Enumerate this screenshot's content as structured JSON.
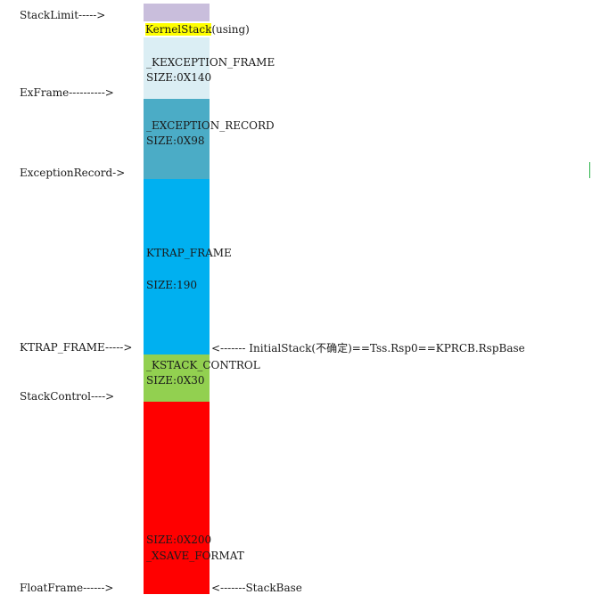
{
  "colors": {
    "top_region": "#c9bedc",
    "kernel_stack_highlight": "#ffff00",
    "kexception_frame": "#dbeef4",
    "exception_record": "#4bacc6",
    "ktrap_frame": "#00b0f0",
    "kstack_control": "#92d050",
    "xsave_format": "#ff0000"
  },
  "left_pointers": {
    "stack_limit": "StackLimit----->",
    "ex_frame": "ExFrame---------->",
    "exception_record": "ExceptionRecord->",
    "ktrap_frame": "KTRAP_FRAME----->",
    "stack_control": "StackControl---->",
    "float_frame": "FloatFrame------>"
  },
  "blocks": {
    "kernel_stack_hl": "KernelStack",
    "kernel_stack_rest": "(using)",
    "kexception_name": "_KEXCEPTION_FRAME",
    "kexception_size": "SIZE:0X140",
    "exception_record_name": "_EXCEPTION_RECORD",
    "exception_record_size": "SIZE:0X98",
    "ktrap_name": "KTRAP_FRAME",
    "ktrap_size": "SIZE:190",
    "kstack_control_name": "_KSTACK_CONTROL",
    "kstack_control_size": "SIZE:0X30",
    "xsave_size": "SIZE:0X200",
    "xsave_name": "_XSAVE_FORMAT"
  },
  "right_notes": {
    "initial_stack": "<------- InitialStack(不确定)==Tss.Rsp0==KPRCB.RspBase",
    "stack_base": "<-------StackBase"
  }
}
